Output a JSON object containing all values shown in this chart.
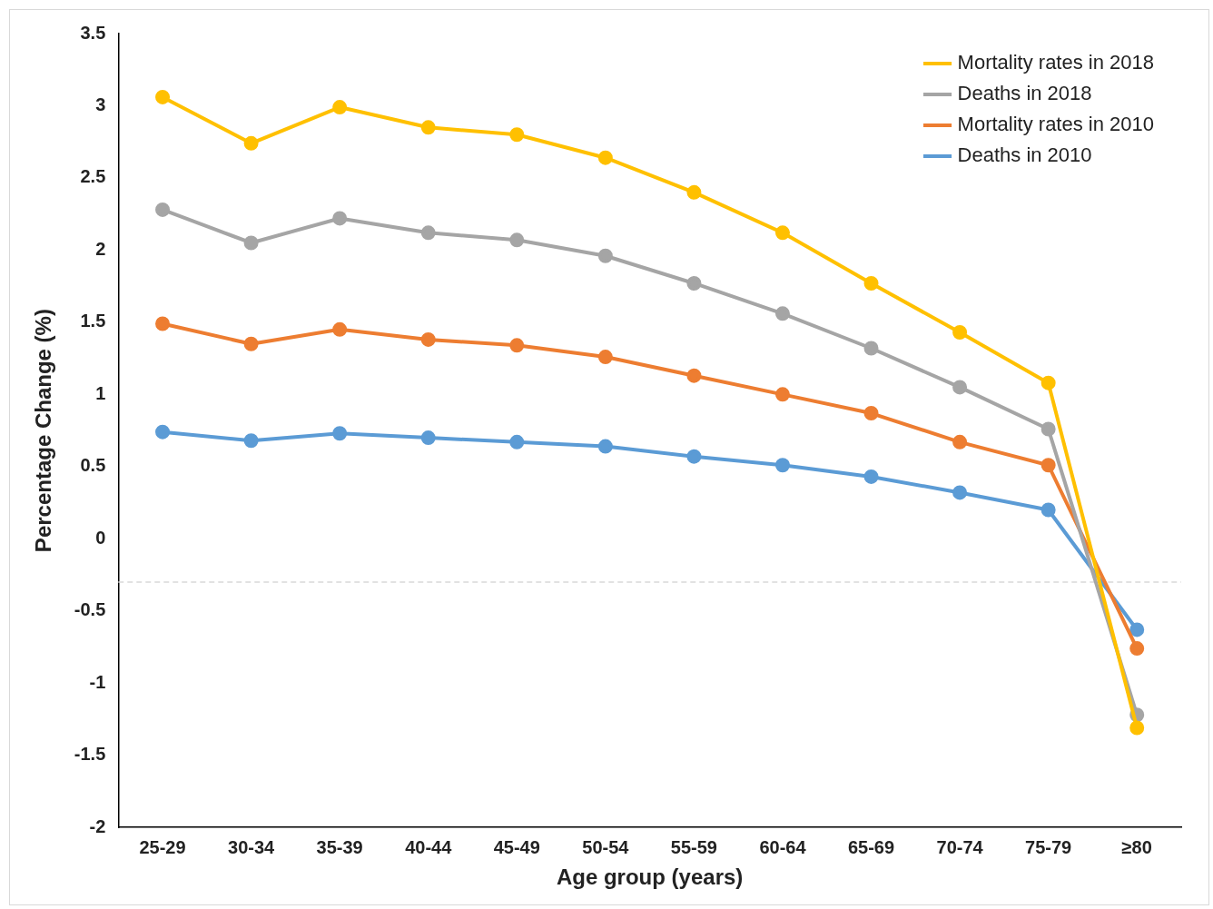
{
  "chart_data": {
    "type": "line",
    "xlabel": "Age group (years)",
    "ylabel": "Percentage Change (%)",
    "categories": [
      "25-29",
      "30-34",
      "35-39",
      "40-44",
      "45-49",
      "50-54",
      "55-59",
      "60-64",
      "65-69",
      "70-74",
      "75-79",
      "≥80"
    ],
    "series": [
      {
        "name": "Mortality rates in 2018",
        "color": "#ffc000",
        "values": [
          3.06,
          2.74,
          2.99,
          2.85,
          2.8,
          2.64,
          2.4,
          2.12,
          1.77,
          1.43,
          1.08,
          -1.31
        ]
      },
      {
        "name": "Deaths in 2018",
        "color": "#a5a5a5",
        "values": [
          2.28,
          2.05,
          2.22,
          2.12,
          2.07,
          1.96,
          1.77,
          1.56,
          1.32,
          1.05,
          0.76,
          -1.22
        ]
      },
      {
        "name": "Mortality rates in 2010",
        "color": "#ed7d31",
        "values": [
          1.49,
          1.35,
          1.45,
          1.38,
          1.34,
          1.26,
          1.13,
          1,
          0.87,
          0.67,
          0.51,
          -0.76
        ]
      },
      {
        "name": "Deaths in 2010",
        "color": "#5b9bd5",
        "values": [
          0.74,
          0.68,
          0.73,
          0.7,
          0.67,
          0.64,
          0.57,
          0.51,
          0.43,
          0.32,
          0.2,
          -0.63
        ]
      }
    ],
    "ylim": [
      -2,
      3.5
    ],
    "yticks": [
      -2,
      -1.5,
      -1,
      -0.5,
      0,
      0.5,
      1,
      1.5,
      2,
      2.5,
      3,
      3.5
    ],
    "ref_lines": [
      {
        "axis": "y",
        "value": -0.3,
        "color": "#d9d9d9",
        "line_style": "dashed"
      }
    ],
    "grid": false,
    "legend": "top right",
    "marker": "circle",
    "line_style": "solid"
  }
}
